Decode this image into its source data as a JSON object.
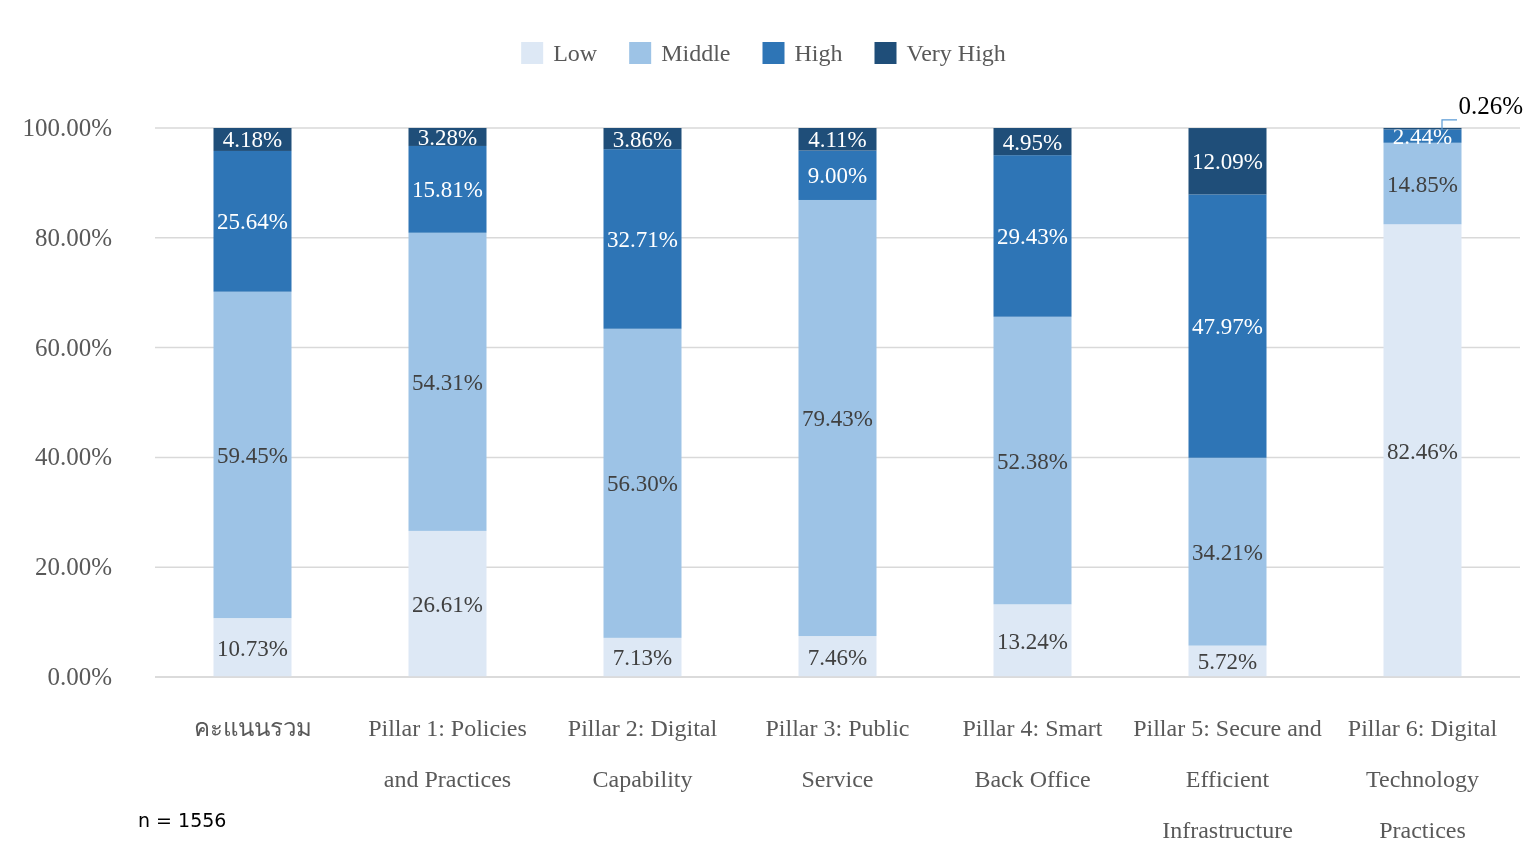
{
  "chart_data": {
    "type": "bar",
    "stacked": true,
    "categories": [
      "คะแนนรวม",
      "Pillar 1: Policies and Practices",
      "Pillar 2: Digital Capability",
      "Pillar 3: Public Service",
      "Pillar 4: Smart Back Office",
      "Pillar 5: Secure and Efficient Infrastructure",
      "Pillar 6: Digital Technology Practices"
    ],
    "series": [
      {
        "name": "Low",
        "color": "#dde8f5",
        "values": [
          10.73,
          26.61,
          7.13,
          7.46,
          13.24,
          5.72,
          82.46
        ],
        "value_labels": [
          "10.73%",
          "26.61%",
          "7.13%",
          "7.46%",
          "13.24%",
          "5.72%",
          "82.46%"
        ]
      },
      {
        "name": "Middle",
        "color": "#9dc3e6",
        "values": [
          59.45,
          54.31,
          56.3,
          79.43,
          52.38,
          34.21,
          14.85
        ],
        "value_labels": [
          "59.45%",
          "54.31%",
          "56.30%",
          "79.43%",
          "52.38%",
          "34.21%",
          "14.85%"
        ]
      },
      {
        "name": "High",
        "color": "#2e75b6",
        "values": [
          25.64,
          15.81,
          32.71,
          9.0,
          29.43,
          47.97,
          2.44
        ],
        "value_labels": [
          "25.64%",
          "15.81%",
          "32.71%",
          "9.00%",
          "29.43%",
          "47.97%",
          "2.44%"
        ]
      },
      {
        "name": "Very High",
        "color": "#1f4e79",
        "values": [
          4.18,
          3.28,
          3.86,
          4.11,
          4.95,
          12.09,
          0.26
        ],
        "value_labels": [
          "4.18%",
          "3.28%",
          "3.86%",
          "4.11%",
          "4.95%",
          "12.09%",
          "0.26%"
        ]
      }
    ],
    "ylim": [
      0,
      100
    ],
    "yticks": [
      {
        "value": 0,
        "label": "0.00%"
      },
      {
        "value": 20,
        "label": "20.00%"
      },
      {
        "value": 40,
        "label": "40.00%"
      },
      {
        "value": 60,
        "label": "60.00%"
      },
      {
        "value": 80,
        "label": "80.00%"
      },
      {
        "value": 100,
        "label": "100.00%"
      }
    ],
    "grid": "y",
    "legend": "top",
    "annotations": [
      "n = 1556"
    ]
  }
}
